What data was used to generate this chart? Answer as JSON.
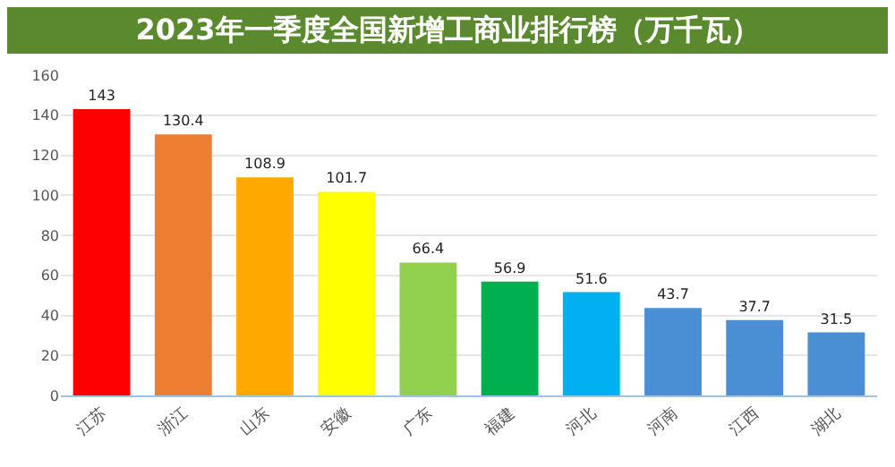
{
  "chart_data": {
    "type": "bar",
    "title": "2023年一季度全国新增工商业排行榜（万千瓦）",
    "categories": [
      "江苏",
      "浙江",
      "山东",
      "安徽",
      "广东",
      "福建",
      "河北",
      "河南",
      "江西",
      "湖北"
    ],
    "values": [
      143,
      130.4,
      108.9,
      101.7,
      66.4,
      56.9,
      51.6,
      43.7,
      37.7,
      31.5
    ],
    "colors": [
      "#ff0000",
      "#ed7d31",
      "#ffa800",
      "#ffff00",
      "#92d050",
      "#00b050",
      "#00b0f0",
      "#4a8fd4",
      "#4a8fd4",
      "#4a8fd4"
    ],
    "ylim": [
      0,
      160
    ],
    "yticks": [
      0,
      20,
      40,
      60,
      80,
      100,
      120,
      140,
      160
    ],
    "grid": "y",
    "data_labels": true
  }
}
